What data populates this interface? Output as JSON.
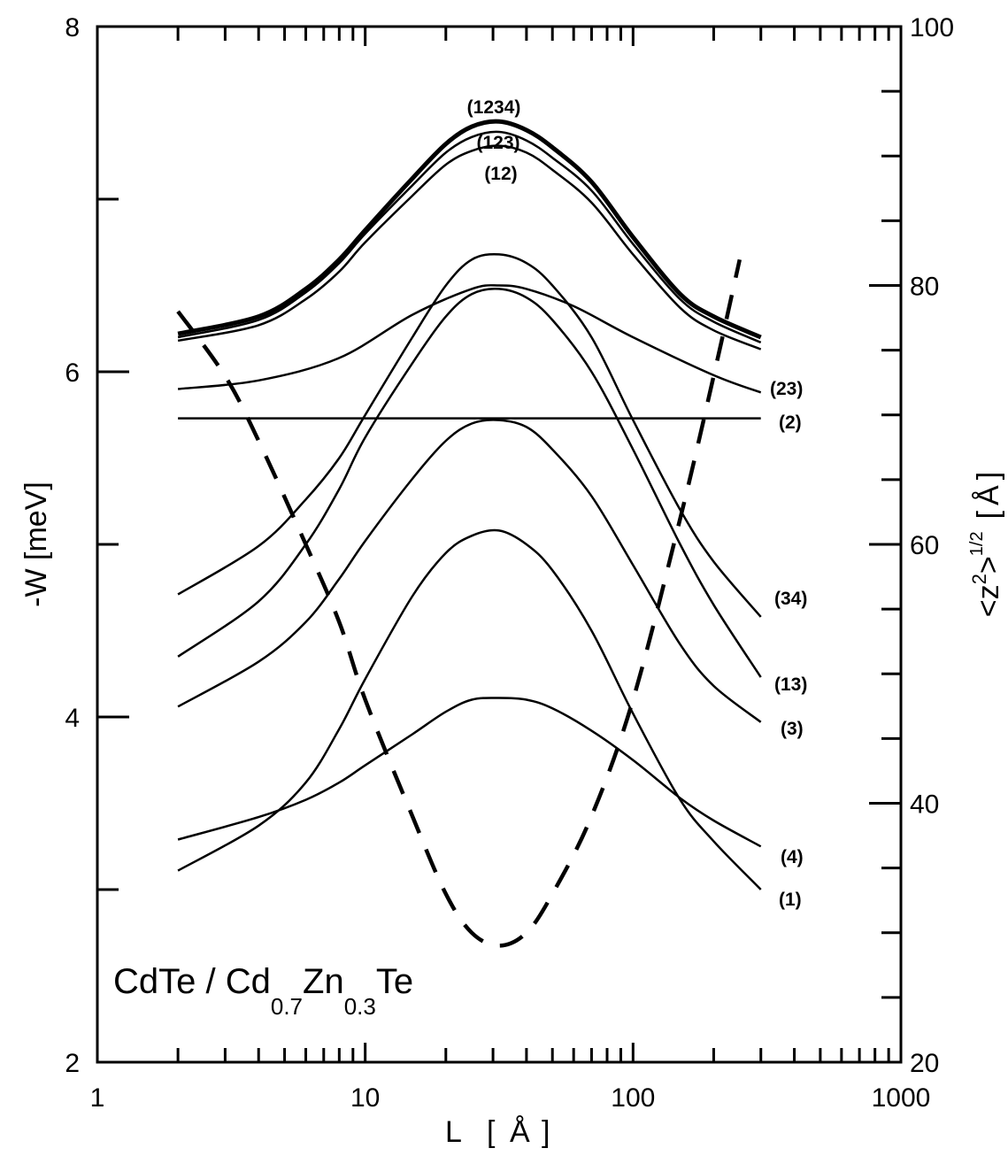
{
  "chart_data": {
    "type": "line",
    "xlabel": "L",
    "xunit": "Å",
    "ylabel": "-W [meV]",
    "y2label": "<z",
    "y2label_sup": "2",
    "y2label_close": ">",
    "y2label_exp": "1/2",
    "y2unit": "Å",
    "xscale": "log",
    "xlim": [
      1,
      1000
    ],
    "ylim": [
      2,
      8
    ],
    "y2lim": [
      20,
      100
    ],
    "xticks": [
      "1",
      "10",
      "100",
      "1000"
    ],
    "yticks": [
      "2",
      "4",
      "6",
      "8"
    ],
    "y2ticks": [
      "20",
      "40",
      "60",
      "80",
      "100"
    ],
    "grid": false,
    "annotation": {
      "base1": "CdTe / Cd",
      "sub1": "0.7",
      "base2": "Zn",
      "sub2": "0.3",
      "base3": "Te"
    },
    "series": [
      {
        "name": "(1234)",
        "axis": "left",
        "style": "bold",
        "x": [
          2,
          4,
          6,
          8,
          10,
          15,
          20,
          25,
          31.6,
          40,
          50,
          70,
          100,
          150,
          200,
          300
        ],
        "y": [
          6.22,
          6.32,
          6.48,
          6.65,
          6.82,
          7.12,
          7.32,
          7.42,
          7.45,
          7.4,
          7.3,
          7.1,
          6.78,
          6.45,
          6.32,
          6.2
        ]
      },
      {
        "name": "(123)",
        "axis": "left",
        "style": "thin",
        "x": [
          2,
          4,
          6,
          8,
          10,
          15,
          20,
          25,
          31.6,
          40,
          50,
          70,
          100,
          150,
          200,
          300
        ],
        "y": [
          6.2,
          6.3,
          6.46,
          6.63,
          6.8,
          7.08,
          7.27,
          7.36,
          7.39,
          7.34,
          7.24,
          7.05,
          6.74,
          6.42,
          6.29,
          6.17
        ]
      },
      {
        "name": "(12)",
        "axis": "left",
        "style": "thin",
        "x": [
          2,
          4,
          6,
          8,
          10,
          15,
          20,
          25,
          31.6,
          40,
          50,
          70,
          100,
          150,
          200,
          300
        ],
        "y": [
          6.18,
          6.27,
          6.42,
          6.58,
          6.75,
          7.02,
          7.2,
          7.28,
          7.31,
          7.27,
          7.17,
          6.98,
          6.68,
          6.37,
          6.24,
          6.13
        ]
      },
      {
        "name": "(23)",
        "axis": "left",
        "style": "thin",
        "x": [
          2,
          4,
          8,
          15,
          25,
          31.6,
          40,
          60,
          100,
          200,
          300
        ],
        "y": [
          5.9,
          5.95,
          6.08,
          6.33,
          6.48,
          6.5,
          6.48,
          6.38,
          6.2,
          5.98,
          5.88
        ]
      },
      {
        "name": "(2)",
        "axis": "left",
        "style": "thin",
        "x": [
          2,
          300
        ],
        "y": [
          5.73,
          5.73
        ]
      },
      {
        "name": "(34)",
        "axis": "left",
        "style": "thin",
        "x": [
          2,
          4,
          6,
          8,
          10,
          15,
          20,
          25,
          31.6,
          40,
          50,
          70,
          100,
          150,
          200,
          300
        ],
        "y": [
          4.71,
          4.99,
          5.26,
          5.5,
          5.75,
          6.2,
          6.5,
          6.65,
          6.68,
          6.63,
          6.5,
          6.2,
          5.72,
          5.2,
          4.9,
          4.58
        ]
      },
      {
        "name": "(13)",
        "axis": "left",
        "style": "thin",
        "x": [
          2,
          4,
          6,
          8,
          10,
          15,
          20,
          25,
          31.6,
          40,
          50,
          70,
          100,
          150,
          200,
          300
        ],
        "y": [
          4.35,
          4.67,
          5.0,
          5.32,
          5.62,
          6.05,
          6.32,
          6.45,
          6.48,
          6.43,
          6.3,
          6.0,
          5.55,
          5.0,
          4.65,
          4.23
        ]
      },
      {
        "name": "(3)",
        "axis": "left",
        "style": "thin",
        "x": [
          2,
          4,
          6,
          8,
          10,
          15,
          20,
          25,
          31.6,
          40,
          50,
          70,
          100,
          150,
          200,
          300
        ],
        "y": [
          4.06,
          4.32,
          4.55,
          4.8,
          5.02,
          5.38,
          5.6,
          5.7,
          5.72,
          5.68,
          5.55,
          5.28,
          4.88,
          4.42,
          4.18,
          3.97
        ]
      },
      {
        "name": "(4)",
        "axis": "left",
        "style": "thin",
        "x": [
          2,
          4,
          6,
          8,
          10,
          15,
          20,
          25,
          31.6,
          40,
          50,
          70,
          100,
          150,
          200,
          300
        ],
        "y": [
          3.29,
          3.42,
          3.52,
          3.62,
          3.72,
          3.9,
          4.03,
          4.1,
          4.11,
          4.1,
          4.05,
          3.92,
          3.75,
          3.53,
          3.4,
          3.25
        ]
      },
      {
        "name": "(1)",
        "axis": "left",
        "style": "thin",
        "x": [
          2,
          4,
          6,
          8,
          10,
          15,
          20,
          25,
          31.6,
          40,
          50,
          70,
          100,
          150,
          200,
          300
        ],
        "y": [
          3.11,
          3.37,
          3.62,
          3.93,
          4.22,
          4.7,
          4.95,
          5.05,
          5.08,
          5.0,
          4.85,
          4.5,
          4.02,
          3.52,
          3.28,
          3.0
        ]
      },
      {
        "axis": "right",
        "style": "dashed",
        "x": [
          2,
          3,
          4,
          6,
          8,
          10,
          15,
          20,
          25,
          31.6,
          40,
          50,
          70,
          100,
          150,
          200,
          250
        ],
        "y": [
          78,
          73,
          68,
          60,
          54,
          48,
          39,
          33,
          30,
          29,
          30,
          33,
          39,
          48,
          62,
          73,
          82
        ]
      }
    ]
  }
}
